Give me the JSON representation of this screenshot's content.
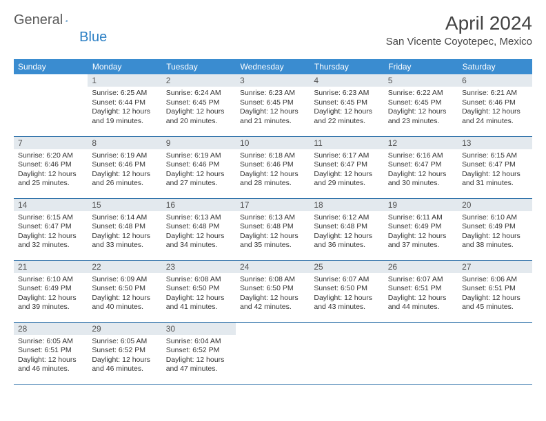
{
  "logo": {
    "part1": "General",
    "part2": "Blue"
  },
  "title": "April 2024",
  "location": "San Vicente Coyotepec, Mexico",
  "colors": {
    "header_bg": "#3a8cd0",
    "header_text": "#ffffff",
    "daynum_bg": "#e3e9ee",
    "row_border": "#2b6fa8",
    "logo_gray": "#5a5a5a",
    "logo_blue": "#2b7fc4"
  },
  "day_headers": [
    "Sunday",
    "Monday",
    "Tuesday",
    "Wednesday",
    "Thursday",
    "Friday",
    "Saturday"
  ],
  "weeks": [
    [
      {
        "blank": true
      },
      {
        "num": "1",
        "sunrise": "Sunrise: 6:25 AM",
        "sunset": "Sunset: 6:44 PM",
        "daylight": "Daylight: 12 hours and 19 minutes."
      },
      {
        "num": "2",
        "sunrise": "Sunrise: 6:24 AM",
        "sunset": "Sunset: 6:45 PM",
        "daylight": "Daylight: 12 hours and 20 minutes."
      },
      {
        "num": "3",
        "sunrise": "Sunrise: 6:23 AM",
        "sunset": "Sunset: 6:45 PM",
        "daylight": "Daylight: 12 hours and 21 minutes."
      },
      {
        "num": "4",
        "sunrise": "Sunrise: 6:23 AM",
        "sunset": "Sunset: 6:45 PM",
        "daylight": "Daylight: 12 hours and 22 minutes."
      },
      {
        "num": "5",
        "sunrise": "Sunrise: 6:22 AM",
        "sunset": "Sunset: 6:45 PM",
        "daylight": "Daylight: 12 hours and 23 minutes."
      },
      {
        "num": "6",
        "sunrise": "Sunrise: 6:21 AM",
        "sunset": "Sunset: 6:46 PM",
        "daylight": "Daylight: 12 hours and 24 minutes."
      }
    ],
    [
      {
        "num": "7",
        "sunrise": "Sunrise: 6:20 AM",
        "sunset": "Sunset: 6:46 PM",
        "daylight": "Daylight: 12 hours and 25 minutes."
      },
      {
        "num": "8",
        "sunrise": "Sunrise: 6:19 AM",
        "sunset": "Sunset: 6:46 PM",
        "daylight": "Daylight: 12 hours and 26 minutes."
      },
      {
        "num": "9",
        "sunrise": "Sunrise: 6:19 AM",
        "sunset": "Sunset: 6:46 PM",
        "daylight": "Daylight: 12 hours and 27 minutes."
      },
      {
        "num": "10",
        "sunrise": "Sunrise: 6:18 AM",
        "sunset": "Sunset: 6:46 PM",
        "daylight": "Daylight: 12 hours and 28 minutes."
      },
      {
        "num": "11",
        "sunrise": "Sunrise: 6:17 AM",
        "sunset": "Sunset: 6:47 PM",
        "daylight": "Daylight: 12 hours and 29 minutes."
      },
      {
        "num": "12",
        "sunrise": "Sunrise: 6:16 AM",
        "sunset": "Sunset: 6:47 PM",
        "daylight": "Daylight: 12 hours and 30 minutes."
      },
      {
        "num": "13",
        "sunrise": "Sunrise: 6:15 AM",
        "sunset": "Sunset: 6:47 PM",
        "daylight": "Daylight: 12 hours and 31 minutes."
      }
    ],
    [
      {
        "num": "14",
        "sunrise": "Sunrise: 6:15 AM",
        "sunset": "Sunset: 6:47 PM",
        "daylight": "Daylight: 12 hours and 32 minutes."
      },
      {
        "num": "15",
        "sunrise": "Sunrise: 6:14 AM",
        "sunset": "Sunset: 6:48 PM",
        "daylight": "Daylight: 12 hours and 33 minutes."
      },
      {
        "num": "16",
        "sunrise": "Sunrise: 6:13 AM",
        "sunset": "Sunset: 6:48 PM",
        "daylight": "Daylight: 12 hours and 34 minutes."
      },
      {
        "num": "17",
        "sunrise": "Sunrise: 6:13 AM",
        "sunset": "Sunset: 6:48 PM",
        "daylight": "Daylight: 12 hours and 35 minutes."
      },
      {
        "num": "18",
        "sunrise": "Sunrise: 6:12 AM",
        "sunset": "Sunset: 6:48 PM",
        "daylight": "Daylight: 12 hours and 36 minutes."
      },
      {
        "num": "19",
        "sunrise": "Sunrise: 6:11 AM",
        "sunset": "Sunset: 6:49 PM",
        "daylight": "Daylight: 12 hours and 37 minutes."
      },
      {
        "num": "20",
        "sunrise": "Sunrise: 6:10 AM",
        "sunset": "Sunset: 6:49 PM",
        "daylight": "Daylight: 12 hours and 38 minutes."
      }
    ],
    [
      {
        "num": "21",
        "sunrise": "Sunrise: 6:10 AM",
        "sunset": "Sunset: 6:49 PM",
        "daylight": "Daylight: 12 hours and 39 minutes."
      },
      {
        "num": "22",
        "sunrise": "Sunrise: 6:09 AM",
        "sunset": "Sunset: 6:50 PM",
        "daylight": "Daylight: 12 hours and 40 minutes."
      },
      {
        "num": "23",
        "sunrise": "Sunrise: 6:08 AM",
        "sunset": "Sunset: 6:50 PM",
        "daylight": "Daylight: 12 hours and 41 minutes."
      },
      {
        "num": "24",
        "sunrise": "Sunrise: 6:08 AM",
        "sunset": "Sunset: 6:50 PM",
        "daylight": "Daylight: 12 hours and 42 minutes."
      },
      {
        "num": "25",
        "sunrise": "Sunrise: 6:07 AM",
        "sunset": "Sunset: 6:50 PM",
        "daylight": "Daylight: 12 hours and 43 minutes."
      },
      {
        "num": "26",
        "sunrise": "Sunrise: 6:07 AM",
        "sunset": "Sunset: 6:51 PM",
        "daylight": "Daylight: 12 hours and 44 minutes."
      },
      {
        "num": "27",
        "sunrise": "Sunrise: 6:06 AM",
        "sunset": "Sunset: 6:51 PM",
        "daylight": "Daylight: 12 hours and 45 minutes."
      }
    ],
    [
      {
        "num": "28",
        "sunrise": "Sunrise: 6:05 AM",
        "sunset": "Sunset: 6:51 PM",
        "daylight": "Daylight: 12 hours and 46 minutes."
      },
      {
        "num": "29",
        "sunrise": "Sunrise: 6:05 AM",
        "sunset": "Sunset: 6:52 PM",
        "daylight": "Daylight: 12 hours and 46 minutes."
      },
      {
        "num": "30",
        "sunrise": "Sunrise: 6:04 AM",
        "sunset": "Sunset: 6:52 PM",
        "daylight": "Daylight: 12 hours and 47 minutes."
      },
      {
        "blank": true
      },
      {
        "blank": true
      },
      {
        "blank": true
      },
      {
        "blank": true
      }
    ]
  ]
}
